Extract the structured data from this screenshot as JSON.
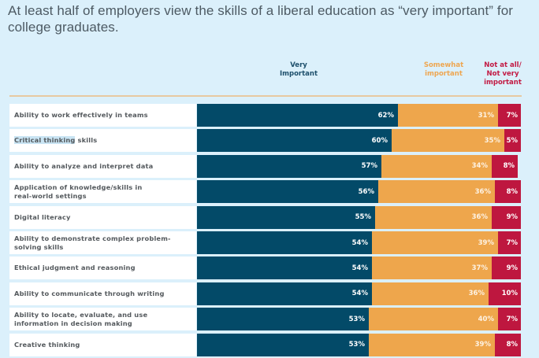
{
  "chart_data": {
    "type": "bar",
    "orientation": "horizontal",
    "stacked": true,
    "title": "At least half of employers view the skills of a liberal education as “very important” for college graduates.",
    "xlabel": "",
    "ylabel": "",
    "xlim": [
      0,
      100
    ],
    "unit": "%",
    "legend": "top",
    "categories": [
      "Ability to work effectively in teams",
      "Critical thinking skills",
      "Ability to analyze and interpret data",
      "Application of knowledge/skills in real-world settings",
      "Digital literacy",
      "Ability to demonstrate complex problem-solving skills",
      "Ethical judgment and reasoning",
      "Ability to communicate through writing",
      "Ability to locate, evaluate, and use information in decision making",
      "Creative thinking"
    ],
    "category_lines": [
      [
        "Ability to work effectively in teams"
      ],
      [
        "Critical thinking skills"
      ],
      [
        "Ability to analyze and interpret data"
      ],
      [
        "Application of knowledge/skills in",
        "real-world settings"
      ],
      [
        "Digital literacy"
      ],
      [
        "Ability to demonstrate complex problem-",
        "solving skills"
      ],
      [
        "Ethical judgment and reasoning"
      ],
      [
        "Ability to communicate through writing"
      ],
      [
        "Ability to locate, evaluate, and use",
        "information in decision making"
      ],
      [
        "Creative thinking"
      ]
    ],
    "highlighted_text": {
      "category_index": 1,
      "text": "Critical thinking"
    },
    "series": [
      {
        "name": "Very Important",
        "label_lines": [
          "Very",
          "Important"
        ],
        "color": "#034a68",
        "values": [
          62,
          60,
          57,
          56,
          55,
          54,
          54,
          54,
          53,
          53
        ]
      },
      {
        "name": "Somewhat important",
        "label_lines": [
          "Somewhat",
          "important"
        ],
        "color": "#eea64c",
        "values": [
          31,
          35,
          34,
          36,
          36,
          39,
          37,
          36,
          40,
          39
        ]
      },
      {
        "name": "Not at all/Not very important",
        "label_lines": [
          "Not at all/",
          "Not very",
          "important"
        ],
        "color": "#be173f",
        "values": [
          7,
          5,
          8,
          8,
          9,
          7,
          9,
          10,
          7,
          8
        ]
      }
    ]
  }
}
